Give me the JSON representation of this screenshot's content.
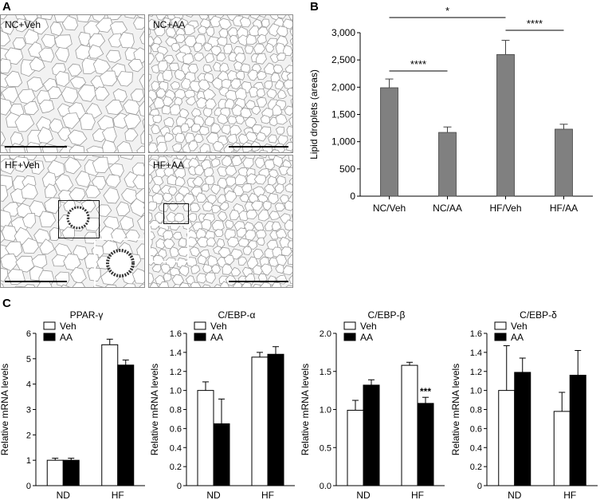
{
  "panel_labels": {
    "a": "A",
    "b": "B",
    "c": "C"
  },
  "micrographs": [
    {
      "label": "NC+Veh"
    },
    {
      "label": "NC+AA"
    },
    {
      "label": "HF+Veh"
    },
    {
      "label": "HF+AA"
    }
  ],
  "colors": {
    "bar_gray": "#808080",
    "bar_black": "#000000",
    "bar_white": "#ffffff",
    "tissue": "#f2f2f2"
  },
  "chart_data": [
    {
      "id": "B",
      "type": "bar",
      "ylabel": "Lipid droplets (areas)",
      "categories": [
        "NC/Veh",
        "NC/AA",
        "HF/Veh",
        "HF/AA"
      ],
      "values": [
        1990,
        1170,
        2600,
        1230
      ],
      "errors": [
        160,
        100,
        260,
        90
      ],
      "ylim": [
        0,
        3000
      ],
      "yticks": [
        0,
        500,
        1000,
        1500,
        2000,
        2500,
        3000
      ],
      "ytick_labels": [
        "0",
        "500",
        "1,000",
        "1,500",
        "2,000",
        "2,500",
        "3,000"
      ],
      "significance": [
        {
          "from": 0,
          "to": 1,
          "label": "****"
        },
        {
          "from": 0,
          "to": 2,
          "label": "*"
        },
        {
          "from": 2,
          "to": 3,
          "label": "****"
        }
      ]
    },
    {
      "id": "C1",
      "type": "bar",
      "title": "PPAR-γ",
      "ylabel": "Relative mRNA levels",
      "categories": [
        "ND",
        "HF"
      ],
      "legend": [
        "Veh",
        "AA"
      ],
      "series": [
        {
          "name": "Veh",
          "values": [
            1.0,
            5.55
          ],
          "errors": [
            0.08,
            0.22
          ]
        },
        {
          "name": "AA",
          "values": [
            1.0,
            4.75
          ],
          "errors": [
            0.08,
            0.2
          ]
        }
      ],
      "ylim": [
        0,
        6
      ],
      "yticks": [
        0,
        1,
        2,
        3,
        4,
        5,
        6
      ],
      "ytick_labels": [
        "0",
        "1",
        "2",
        "3",
        "4",
        "5",
        "6"
      ],
      "annotations": []
    },
    {
      "id": "C2",
      "type": "bar",
      "title": "C/EBP-α",
      "ylabel": "Relative mRNA levels",
      "categories": [
        "ND",
        "HF"
      ],
      "legend": [
        "Veh",
        "AA"
      ],
      "series": [
        {
          "name": "Veh",
          "values": [
            1.0,
            1.35
          ],
          "errors": [
            0.09,
            0.05
          ]
        },
        {
          "name": "AA",
          "values": [
            0.65,
            1.38
          ],
          "errors": [
            0.26,
            0.08
          ]
        }
      ],
      "ylim": [
        0,
        1.6
      ],
      "yticks": [
        0,
        0.2,
        0.4,
        0.6,
        0.8,
        1.0,
        1.2,
        1.4,
        1.6
      ],
      "ytick_labels": [
        "0",
        "0.2",
        "0.4",
        "0.6",
        "0.8",
        "1.0",
        "1.2",
        "1.4",
        "1.6"
      ],
      "annotations": []
    },
    {
      "id": "C3",
      "type": "bar",
      "title": "C/EBP-β",
      "ylabel": "Relative mRNA levels",
      "categories": [
        "ND",
        "HF"
      ],
      "legend": [
        "Veh",
        "AA"
      ],
      "series": [
        {
          "name": "Veh",
          "values": [
            0.99,
            1.58
          ],
          "errors": [
            0.13,
            0.04
          ]
        },
        {
          "name": "AA",
          "values": [
            1.32,
            1.08
          ],
          "errors": [
            0.07,
            0.08
          ]
        }
      ],
      "ylim": [
        0,
        2.0
      ],
      "yticks": [
        0,
        0.5,
        1.0,
        1.5,
        2.0
      ],
      "ytick_labels": [
        "0.0",
        "0.5",
        "1.0",
        "1.5",
        "2.0"
      ],
      "annotations": [
        {
          "category": 1,
          "series": 1,
          "label": "***"
        }
      ]
    },
    {
      "id": "C4",
      "type": "bar",
      "title": "C/EBP-δ",
      "ylabel": "Relative mRNA levels",
      "categories": [
        "ND",
        "HF"
      ],
      "legend": [
        "Veh",
        "AA"
      ],
      "series": [
        {
          "name": "Veh",
          "values": [
            1.0,
            0.78
          ],
          "errors": [
            0.47,
            0.2
          ]
        },
        {
          "name": "AA",
          "values": [
            1.19,
            1.16
          ],
          "errors": [
            0.15,
            0.26
          ]
        }
      ],
      "ylim": [
        0,
        1.6
      ],
      "yticks": [
        0,
        0.2,
        0.4,
        0.6,
        0.8,
        1.0,
        1.2,
        1.4,
        1.6
      ],
      "ytick_labels": [
        "0",
        "0.2",
        "0.4",
        "0.6",
        "0.8",
        "1.0",
        "1.2",
        "1.4",
        "1.6"
      ],
      "annotations": []
    }
  ]
}
